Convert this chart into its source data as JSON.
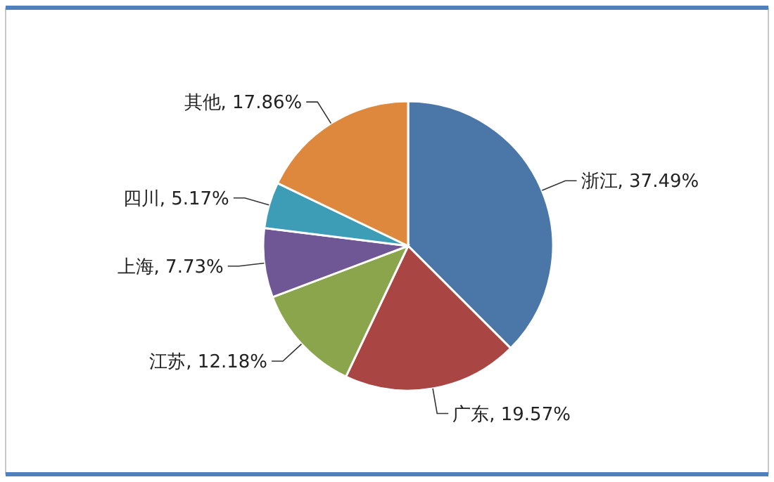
{
  "chart_data": {
    "type": "pie",
    "categories": [
      "浙江",
      "广东",
      "江苏",
      "上海",
      "四川",
      "其他"
    ],
    "values": [
      37.49,
      19.57,
      12.18,
      7.73,
      5.17,
      17.86
    ],
    "value_labels": [
      "37.49%",
      "19.57%",
      "12.18%",
      "7.73%",
      "5.17%",
      "17.86%"
    ],
    "colors": [
      "#4a76a8",
      "#a94543",
      "#8ba54c",
      "#6f5694",
      "#3e9db6",
      "#dd883c"
    ]
  }
}
